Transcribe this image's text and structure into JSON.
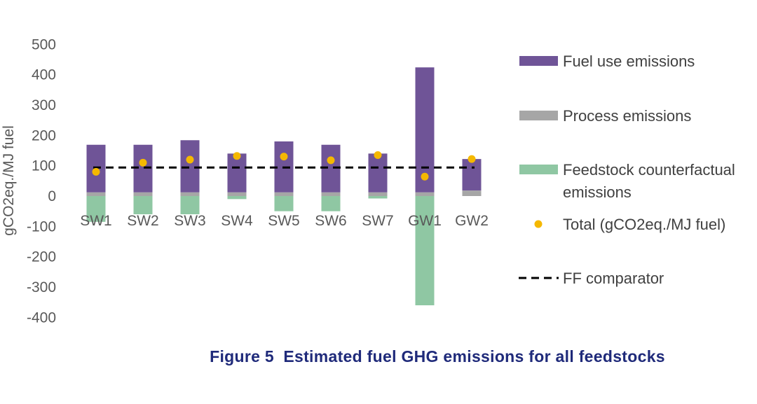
{
  "caption": "Figure 5  Estimated fuel GHG emissions for all feedstocks",
  "colors": {
    "fuel_use": "#6f5497",
    "process": "#a6a6a6",
    "feedstock": "#8fc7a3",
    "total": "#f5b800",
    "comparator": "#000000",
    "axis_text": "#595959",
    "caption": "#1f2a7a"
  },
  "chart_data": {
    "type": "bar",
    "stacked": true,
    "categories": [
      "SW1",
      "SW2",
      "SW3",
      "SW4",
      "SW5",
      "SW6",
      "SW7",
      "GW1",
      "GW2"
    ],
    "ylabel": "gCO2eq./MJ fuel",
    "ylim": [
      -400,
      500
    ],
    "yticks": [
      500,
      400,
      300,
      200,
      100,
      0,
      -100,
      -200,
      -300,
      -400
    ],
    "grid": false,
    "legend_position": "right",
    "series": [
      {
        "name": "Process emissions",
        "kind": "bar",
        "values": [
          12,
          12,
          12,
          12,
          12,
          12,
          12,
          12,
          18
        ]
      },
      {
        "name": "Fuel use emissions",
        "kind": "bar",
        "values": [
          157,
          157,
          172,
          128,
          168,
          157,
          128,
          412,
          104
        ]
      },
      {
        "name": "Feedstock counterfactual emissions",
        "kind": "bar",
        "values": [
          -85,
          -60,
          -60,
          -10,
          -50,
          -50,
          -8,
          -360,
          0
        ]
      },
      {
        "name": "Total (gCO2eq./MJ fuel)",
        "kind": "point",
        "values": [
          80,
          110,
          120,
          132,
          130,
          118,
          135,
          64,
          122
        ]
      },
      {
        "name": "FF comparator",
        "kind": "line",
        "value": 94
      }
    ],
    "legend": [
      {
        "label": "Fuel use emissions",
        "series": "Fuel use emissions"
      },
      {
        "label": "Process emissions",
        "series": "Process emissions"
      },
      {
        "label": "Feedstock counterfactual\nemissions",
        "series": "Feedstock counterfactual emissions"
      },
      {
        "label": "Total (gCO2eq./MJ fuel)",
        "series": "Total (gCO2eq./MJ fuel)"
      },
      {
        "label": "FF comparator",
        "series": "FF comparator"
      }
    ]
  }
}
